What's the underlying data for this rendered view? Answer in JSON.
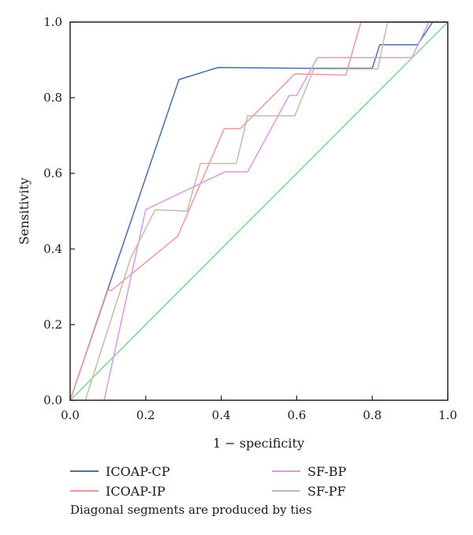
{
  "chart_data": {
    "type": "line",
    "title": "",
    "xlabel": "1 − specificity",
    "ylabel": "Sensitivity",
    "xlim": [
      0,
      1
    ],
    "ylim": [
      0,
      1
    ],
    "x_ticks": [
      "0.0",
      "0.2",
      "0.4",
      "0.6",
      "0.8",
      "1.0"
    ],
    "y_ticks": [
      "0.0",
      "0.2",
      "0.4",
      "0.6",
      "0.8",
      "1.0"
    ],
    "grid": false,
    "legend_position": "bottom",
    "note": "Diagonal segments are produced by ties",
    "series": [
      {
        "name": "ICOAP-CP",
        "color": "#4a6fa5",
        "x": [
          0,
          0.288,
          0.392,
          0.6,
          0.8,
          0.82,
          0.92,
          0.96,
          1.0
        ],
        "y": [
          0,
          0.848,
          0.88,
          0.878,
          0.878,
          0.94,
          0.94,
          1.0,
          1.0
        ]
      },
      {
        "name": "ICOAP-IP",
        "color": "#e89b9b",
        "x": [
          0,
          0.1,
          0.11,
          0.285,
          0.408,
          0.45,
          0.595,
          0.73,
          0.77,
          1.0
        ],
        "y": [
          0,
          0.291,
          0.291,
          0.434,
          0.718,
          0.718,
          0.863,
          0.86,
          1.0,
          1.0
        ]
      },
      {
        "name": "SF-BP",
        "color": "#d79be0",
        "x": [
          0.09,
          0.2,
          0.41,
          0.47,
          0.58,
          0.6,
          0.655,
          0.905,
          0.95,
          1.0
        ],
        "y": [
          0,
          0.504,
          0.604,
          0.604,
          0.806,
          0.806,
          0.906,
          0.906,
          1.0,
          1.0
        ]
      },
      {
        "name": "SF-PF",
        "color": "#c8b9a8",
        "x": [
          0.04,
          0.16,
          0.225,
          0.31,
          0.345,
          0.44,
          0.47,
          0.595,
          0.645,
          0.815,
          0.84,
          1.0
        ],
        "y": [
          0,
          0.375,
          0.504,
          0.5,
          0.626,
          0.626,
          0.752,
          0.752,
          0.876,
          0.876,
          1.0,
          1.0
        ]
      },
      {
        "name": "",
        "color": "#7fd68a",
        "x": [
          0,
          1
        ],
        "y": [
          0,
          1
        ]
      }
    ]
  }
}
